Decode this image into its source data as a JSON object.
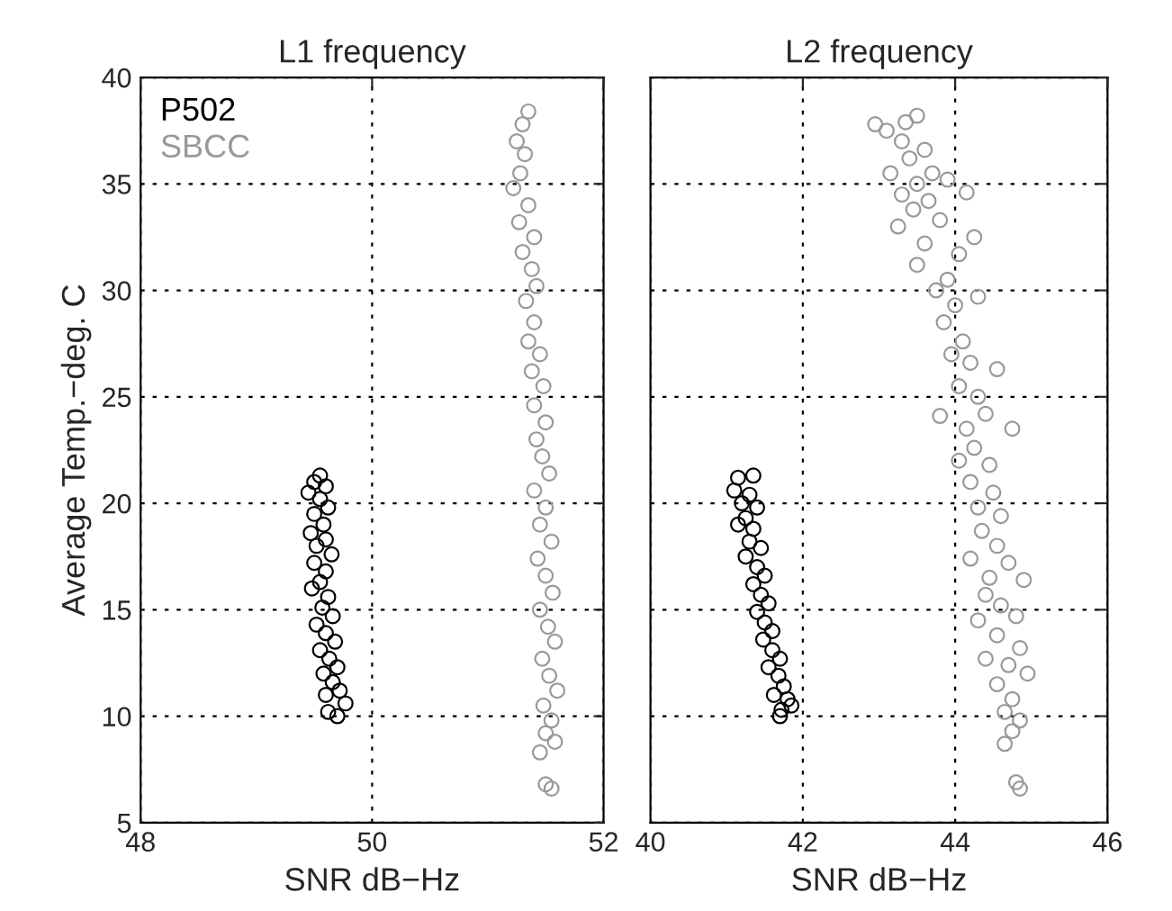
{
  "chart_data": [
    {
      "type": "scatter",
      "title": "L1 frequency",
      "xlabel": "SNR dB−Hz",
      "ylabel": "Average Temp.−deg. C",
      "xlim": [
        48,
        52
      ],
      "xticks": [
        48,
        50,
        52
      ],
      "ylim": [
        5,
        40
      ],
      "yticks": [
        5,
        10,
        15,
        20,
        25,
        30,
        35,
        40
      ],
      "grid": true,
      "legend": "top left",
      "marker": "circle",
      "series": [
        {
          "name": "P502",
          "color": "#000000",
          "x": [
            49.55,
            49.5,
            49.6,
            49.45,
            49.55,
            49.62,
            49.5,
            49.58,
            49.47,
            49.6,
            49.52,
            49.65,
            49.5,
            49.6,
            49.55,
            49.48,
            49.62,
            49.57,
            49.66,
            49.52,
            49.6,
            49.68,
            49.55,
            49.63,
            49.7,
            49.58,
            49.66,
            49.72,
            49.6,
            49.77,
            49.62,
            49.7
          ],
          "values": [
            21.3,
            21,
            20.8,
            20.5,
            20.2,
            19.8,
            19.5,
            19,
            18.6,
            18.3,
            18,
            17.6,
            17.2,
            16.8,
            16.3,
            16,
            15.6,
            15.1,
            14.7,
            14.3,
            13.9,
            13.5,
            13.1,
            12.7,
            12.3,
            12,
            11.6,
            11.2,
            11,
            10.6,
            10.2,
            10
          ]
        },
        {
          "name": "SBCC",
          "color": "#999999",
          "x": [
            51.35,
            51.3,
            51.25,
            51.32,
            51.28,
            51.22,
            51.35,
            51.27,
            51.4,
            51.3,
            51.38,
            51.42,
            51.33,
            51.4,
            51.35,
            51.45,
            51.38,
            51.48,
            51.4,
            51.5,
            51.42,
            51.47,
            51.53,
            51.4,
            51.5,
            51.45,
            51.55,
            51.43,
            51.5,
            51.56,
            51.45,
            51.52,
            51.58,
            51.47,
            51.53,
            51.6,
            51.48,
            51.55,
            51.5,
            51.58,
            51.45,
            51.5,
            51.55
          ],
          "values": [
            38.4,
            37.8,
            37,
            36.4,
            35.5,
            34.8,
            34,
            33.2,
            32.5,
            31.8,
            31,
            30.2,
            29.5,
            28.5,
            27.6,
            27,
            26.2,
            25.5,
            24.6,
            23.8,
            23,
            22.2,
            21.4,
            20.6,
            19.8,
            19,
            18.2,
            17.4,
            16.6,
            15.8,
            15,
            14.2,
            13.5,
            12.7,
            11.9,
            11.2,
            10.5,
            9.8,
            9.2,
            8.8,
            8.3,
            6.8,
            6.6
          ]
        }
      ]
    },
    {
      "type": "scatter",
      "title": "L2 frequency",
      "xlabel": "SNR dB−Hz",
      "xlim": [
        40,
        46
      ],
      "xticks": [
        40,
        42,
        44,
        46
      ],
      "ylim": [
        5,
        40
      ],
      "yticks": [
        5,
        10,
        15,
        20,
        25,
        30,
        35,
        40
      ],
      "grid": true,
      "marker": "circle",
      "tick_labels": "x",
      "series": [
        {
          "color": "#000000",
          "x": [
            41.15,
            41.35,
            41.1,
            41.3,
            41.2,
            41.4,
            41.25,
            41.15,
            41.35,
            41.3,
            41.45,
            41.25,
            41.4,
            41.5,
            41.35,
            41.45,
            41.55,
            41.4,
            41.5,
            41.6,
            41.48,
            41.6,
            41.7,
            41.55,
            41.68,
            41.75,
            41.62,
            41.8,
            41.72,
            41.85,
            41.7
          ],
          "values": [
            21.2,
            21.3,
            20.6,
            20.4,
            20,
            19.8,
            19.3,
            19,
            18.8,
            18.2,
            17.9,
            17.5,
            17,
            16.6,
            16.2,
            15.7,
            15.3,
            14.9,
            14.4,
            14,
            13.6,
            13.1,
            12.7,
            12.3,
            11.9,
            11.4,
            11,
            10.8,
            10.3,
            10.5,
            10
          ]
        },
        {
          "color": "#999999",
          "x": [
            42.95,
            43.1,
            43.35,
            43.5,
            43.3,
            43.6,
            43.4,
            43.15,
            43.7,
            43.5,
            43.9,
            43.3,
            43.65,
            44.15,
            43.45,
            43.8,
            43.25,
            44.25,
            43.6,
            43.5,
            44.05,
            43.9,
            43.75,
            44.0,
            44.3,
            43.85,
            44.1,
            43.95,
            44.2,
            44.55,
            44.05,
            44.3,
            43.8,
            44.15,
            44.4,
            44.75,
            44.25,
            44.05,
            44.45,
            44.2,
            44.5,
            44.3,
            44.6,
            44.35,
            44.55,
            44.2,
            44.7,
            44.45,
            44.9,
            44.4,
            44.6,
            44.3,
            44.8,
            44.55,
            44.85,
            44.4,
            44.7,
            44.95,
            44.55,
            44.75,
            44.65,
            44.85,
            44.75,
            44.65,
            44.8,
            44.85
          ],
          "values": [
            37.8,
            37.5,
            37.9,
            38.2,
            37,
            36.6,
            36.2,
            35.5,
            35.5,
            35,
            35.2,
            34.5,
            34.2,
            34.6,
            33.8,
            33.3,
            33,
            32.5,
            32.2,
            31.2,
            31.7,
            30.5,
            30,
            29.3,
            29.7,
            28.5,
            27.6,
            27,
            26.6,
            26.3,
            25.5,
            25,
            24.1,
            23.5,
            24.2,
            23.5,
            22.6,
            22,
            21.8,
            21,
            20.5,
            19.8,
            19.4,
            18.7,
            18,
            17.4,
            17.2,
            16.5,
            16.4,
            15.7,
            15.2,
            14.5,
            14.7,
            13.8,
            13.2,
            12.7,
            12.4,
            12,
            11.5,
            10.8,
            10.2,
            9.8,
            9.3,
            8.7,
            6.9,
            6.6
          ]
        }
      ]
    }
  ]
}
